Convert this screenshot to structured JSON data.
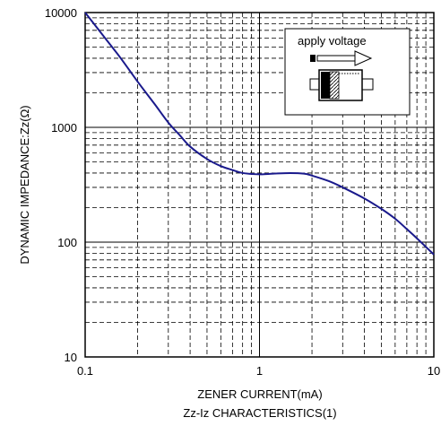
{
  "chart_data": {
    "type": "line",
    "xscale": "log",
    "yscale": "log",
    "xlim": [
      0.1,
      10
    ],
    "ylim": [
      10,
      10000
    ],
    "grid": true,
    "xlabel": "ZENER CURRENT(mA)",
    "ylabel": "DYNAMIC IMPEDANCE:Zz(Ω)",
    "caption": "Zz-Iz CHARACTERISTICS(1)",
    "x_ticks": [
      "0.1",
      "1",
      "10"
    ],
    "y_ticks": [
      "10",
      "100",
      "1000",
      "10000"
    ],
    "series": [
      {
        "color": "#1a1a8c",
        "x": [
          0.1,
          0.13,
          0.16,
          0.2,
          0.25,
          0.3,
          0.35,
          0.4,
          0.5,
          0.6,
          0.7,
          0.8,
          1.0,
          1.2,
          1.5,
          1.8,
          2.0,
          2.5,
          3.0,
          4.0,
          5.0,
          6.0,
          7.0,
          8.0,
          10.0
        ],
        "y": [
          10000,
          6000,
          4000,
          2500,
          1600,
          1100,
          850,
          680,
          530,
          460,
          425,
          400,
          390,
          395,
          400,
          395,
          380,
          340,
          300,
          240,
          195,
          160,
          130,
          108,
          78
        ]
      }
    ],
    "annotation": {
      "label": "apply voltage"
    }
  }
}
